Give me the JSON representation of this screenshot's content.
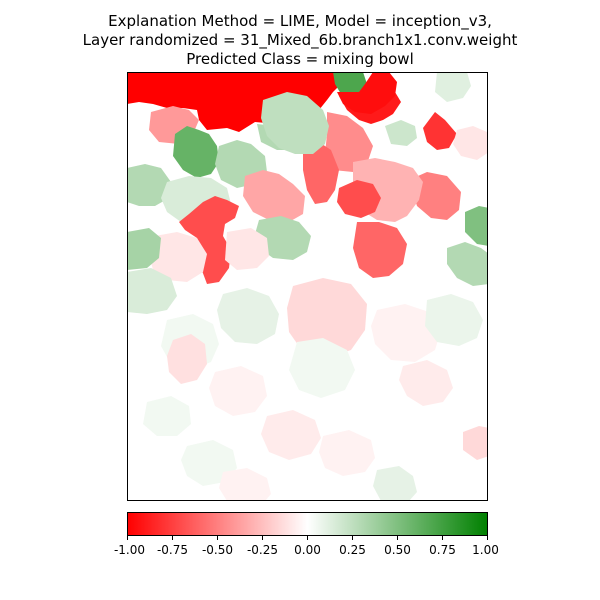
{
  "title": {
    "line1": "Explanation Method = LIME, Model = inception_v3,",
    "line2": "Layer randomized = 31_Mixed_6b.branch1x1.conv.weight",
    "line3": "Predicted Class = mixing bowl"
  },
  "colorbar": {
    "min": -1.0,
    "max": 1.0,
    "colors": {
      "negative": "#ff0000",
      "neutral": "#ffffff",
      "positive": "#008000"
    },
    "ticks": [
      "-1.00",
      "-0.75",
      "-0.50",
      "-0.25",
      "0.00",
      "0.25",
      "0.50",
      "0.75",
      "1.00"
    ]
  },
  "chart_data": {
    "type": "heatmap",
    "value_range": [
      -1,
      1
    ],
    "regions": [
      {
        "id": "r1",
        "value": -1.0
      },
      {
        "id": "r2",
        "value": -0.9
      },
      {
        "id": "r3",
        "value": 0.7
      },
      {
        "id": "r4",
        "value": -0.95
      },
      {
        "id": "r5",
        "value": 0.55
      },
      {
        "id": "r6",
        "value": 0.35
      },
      {
        "id": "r7",
        "value": -0.4
      },
      {
        "id": "r8",
        "value": 0.3
      },
      {
        "id": "r9",
        "value": -0.35
      },
      {
        "id": "r10",
        "value": 0.6
      },
      {
        "id": "r11",
        "value": -0.8
      },
      {
        "id": "r12",
        "value": -0.5
      },
      {
        "id": "r13",
        "value": 0.5
      },
      {
        "id": "r14",
        "value": 0.3
      },
      {
        "id": "r15",
        "value": 0.3
      },
      {
        "id": "r16",
        "value": -0.45
      },
      {
        "id": "r17",
        "value": -0.6
      },
      {
        "id": "r18",
        "value": 0.25
      },
      {
        "id": "r19",
        "value": -0.35
      },
      {
        "id": "r20",
        "value": 0.15
      },
      {
        "id": "r21",
        "value": -0.7
      },
      {
        "id": "r22",
        "value": 0.3
      },
      {
        "id": "r23",
        "value": -0.3
      },
      {
        "id": "r24",
        "value": -0.6
      },
      {
        "id": "r25",
        "value": -0.1
      },
      {
        "id": "r26",
        "value": 0.35
      },
      {
        "id": "r27",
        "value": -0.7
      },
      {
        "id": "r28",
        "value": -0.1
      },
      {
        "id": "r29",
        "value": 0.3
      },
      {
        "id": "r30",
        "value": 0.15
      },
      {
        "id": "r31",
        "value": -0.15
      },
      {
        "id": "r32",
        "value": 0.1
      },
      {
        "id": "r33",
        "value": 0.05
      },
      {
        "id": "r34",
        "value": -0.12
      },
      {
        "id": "r35",
        "value": -0.05
      },
      {
        "id": "r36",
        "value": 0.05
      },
      {
        "id": "r37",
        "value": -0.08
      },
      {
        "id": "r38",
        "value": -0.05
      },
      {
        "id": "r39",
        "value": -0.15
      },
      {
        "id": "r40",
        "value": 0.05
      },
      {
        "id": "r41",
        "value": 0.1
      },
      {
        "id": "r42",
        "value": -0.45
      },
      {
        "id": "r43",
        "value": 0.08
      },
      {
        "id": "r44",
        "value": 0.2
      },
      {
        "id": "r45",
        "value": 0.12
      },
      {
        "id": "r46",
        "value": -0.08
      },
      {
        "id": "r47",
        "value": -0.05
      },
      {
        "id": "r48",
        "value": 0.05
      },
      {
        "id": "r49",
        "value": -0.1
      },
      {
        "id": "r50",
        "value": -0.05
      }
    ]
  }
}
